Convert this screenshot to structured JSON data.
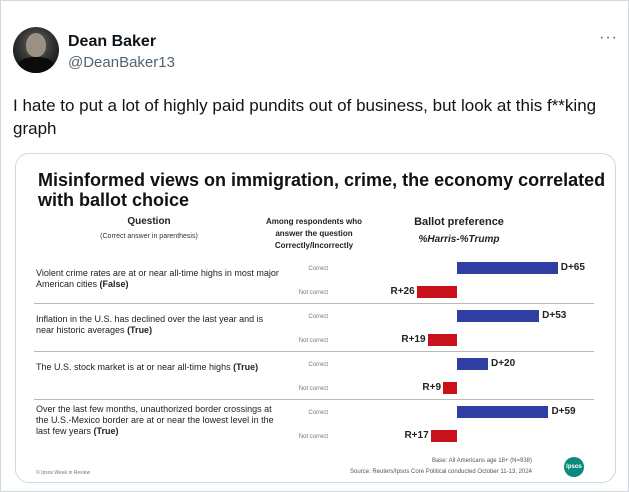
{
  "tweet": {
    "author_name": "Dean Baker",
    "author_handle": "@DeanBaker13",
    "more_icon": "···",
    "text": "I hate to put a lot of highly paid pundits out of business, but look at this f**king graph"
  },
  "chart_data": {
    "type": "bar",
    "title": "Misinformed views on immigration, crime, the economy correlated with ballot choice",
    "column_headers": {
      "question": "Question",
      "question_sub": "(Correct answer in parenthesis)",
      "respondents": "Among respondents who answer the question Correctly/Incorrectly",
      "ballot": "Ballot preference",
      "ballot_sub": "%Harris-%Trump"
    },
    "response_labels": {
      "correct": "Correct",
      "not_correct": "Not correct"
    },
    "questions": [
      {
        "text": "Violent crime rates are at or near all-time highs in most major American cities",
        "answer": "(False)",
        "correct": {
          "value": 65,
          "label": "D+65"
        },
        "not_correct": {
          "value": -26,
          "label": "R+26"
        }
      },
      {
        "text": "Inflation in the U.S. has declined over the last year and is near historic averages",
        "answer": "(True)",
        "correct": {
          "value": 53,
          "label": "D+53"
        },
        "not_correct": {
          "value": -19,
          "label": "R+19"
        }
      },
      {
        "text": "The U.S. stock market is at or near all-time highs",
        "answer": "(True)",
        "correct": {
          "value": 20,
          "label": "D+20"
        },
        "not_correct": {
          "value": -9,
          "label": "R+9"
        }
      },
      {
        "text": "Over the last few months, unauthorized border crossings at the U.S.-Mexico border are at or near the lowest level in the last few years",
        "answer": "(True)",
        "correct": {
          "value": 59,
          "label": "D+59"
        },
        "not_correct": {
          "value": -17,
          "label": "R+17"
        }
      }
    ],
    "colors": {
      "dem": "#2e3ea2",
      "rep": "#c8111b"
    },
    "footer": {
      "left": "© Ipsos Week in Review",
      "base": "Base: All Americans age 18+ (N=938)",
      "source": "Source: Reuters/Ipsos Core Political conducted October 11-13, 2024",
      "logo": "Ipsos"
    }
  }
}
